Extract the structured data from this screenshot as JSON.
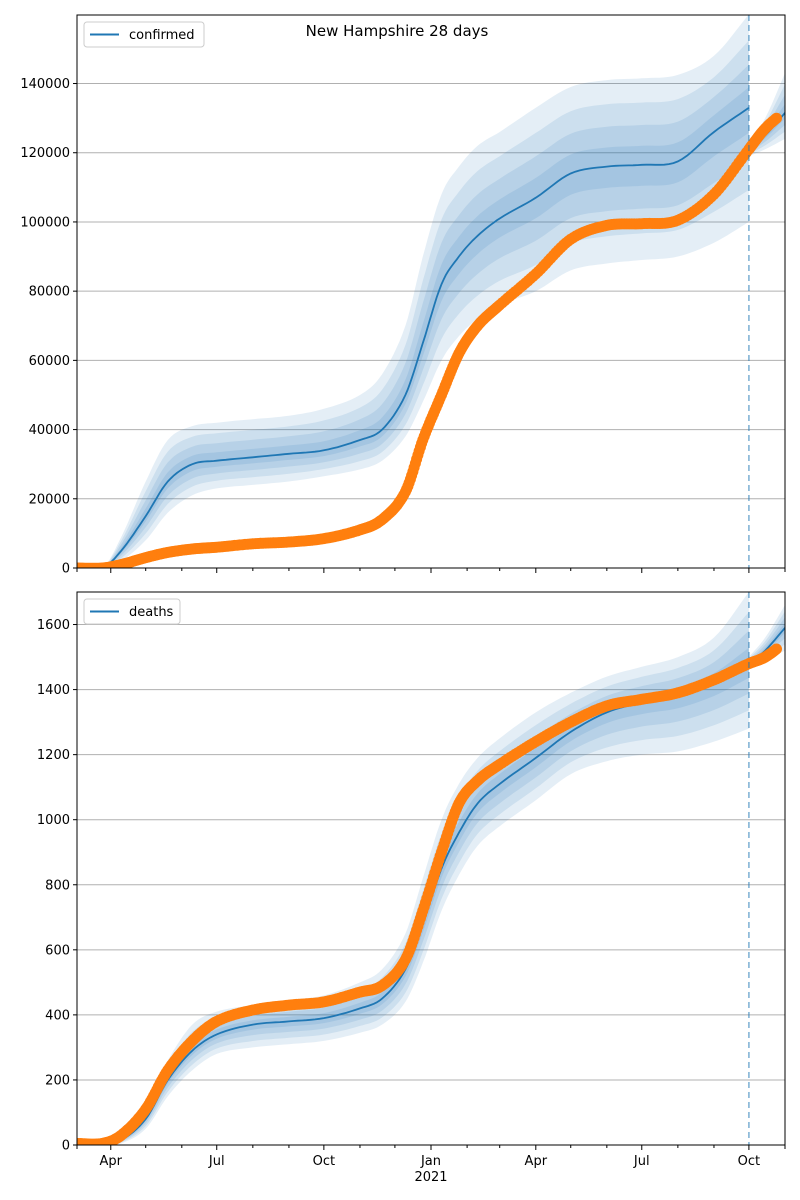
{
  "chart_data": [
    {
      "type": "line",
      "title": "New Hampshire 28 days",
      "legend": {
        "entries": [
          "confirmed"
        ],
        "placement": "top-left"
      },
      "xlabel": "",
      "ylabel": "",
      "ylim": [
        0,
        159800
      ],
      "yticks": [
        0,
        20000,
        40000,
        60000,
        80000,
        100000,
        120000,
        140000
      ],
      "ytick_labels": [
        "0",
        "20000",
        "40000",
        "60000",
        "80000",
        "100000",
        "120000",
        "140000"
      ],
      "grid": "y",
      "forecast_marker_date": "2021-10-01",
      "x_dates": [
        "2020-03-01",
        "2020-03-25",
        "2020-04-10",
        "2020-05-01",
        "2020-05-20",
        "2020-06-10",
        "2020-07-01",
        "2020-08-01",
        "2020-09-01",
        "2020-10-01",
        "2020-11-01",
        "2020-11-20",
        "2020-12-10",
        "2020-12-25",
        "2021-01-10",
        "2021-01-25",
        "2021-02-10",
        "2021-03-01",
        "2021-04-01",
        "2021-05-01",
        "2021-06-01",
        "2021-07-01",
        "2021-08-01",
        "2021-09-01",
        "2021-10-01"
      ],
      "series": [
        {
          "name": "confirmed (model median)",
          "color": "#1f77b4",
          "values": [
            0,
            0,
            5000,
            15000,
            25000,
            30000,
            31000,
            32000,
            33000,
            34000,
            37000,
            40000,
            50000,
            65000,
            82000,
            90000,
            96000,
            101000,
            107000,
            114000,
            116000,
            116500,
            117500,
            126000,
            133000
          ]
        },
        {
          "name": "confirmed (observed)",
          "color": "#ff7f0e",
          "values": [
            0,
            0,
            1000,
            3000,
            4500,
            5500,
            6000,
            7000,
            7500,
            8500,
            11000,
            14000,
            22000,
            37000,
            50000,
            62000,
            70000,
            76000,
            85000,
            95000,
            99000,
            99500,
            100500,
            108000,
            121000
          ]
        },
        {
          "name": "band-outer",
          "values_low": [
            0,
            0,
            2000,
            8000,
            16000,
            21000,
            23000,
            24000,
            25000,
            26500,
            28500,
            31000,
            38000,
            48000,
            60000,
            67000,
            72000,
            76000,
            80000,
            86000,
            88000,
            89000,
            90000,
            94000,
            100000
          ],
          "values_high": [
            0,
            0,
            9000,
            25000,
            37000,
            41000,
            42000,
            43000,
            44000,
            46000,
            50000,
            56000,
            70000,
            90000,
            108000,
            116000,
            122000,
            126000,
            133000,
            139000,
            141000,
            141500,
            142500,
            148000,
            160000
          ]
        }
      ],
      "tail_forecast": {
        "x_dates": [
          "2021-10-01",
          "2021-10-15",
          "2021-11-01"
        ],
        "median": [
          121000,
          125000,
          131500
        ],
        "observed": [
          121000,
          127000,
          132000
        ],
        "low": [
          119000,
          121000,
          124000
        ],
        "high": [
          123000,
          130000,
          143000
        ]
      }
    },
    {
      "type": "line",
      "title": "",
      "legend": {
        "entries": [
          "deaths"
        ],
        "placement": "top-left"
      },
      "xlabel": "2021",
      "ylabel": "",
      "ylim": [
        0,
        1700
      ],
      "yticks": [
        0,
        200,
        400,
        600,
        800,
        1000,
        1200,
        1400,
        1600
      ],
      "ytick_labels": [
        "0",
        "200",
        "400",
        "600",
        "800",
        "1000",
        "1200",
        "1400",
        "1600"
      ],
      "xtick_labels": [
        "Apr",
        "Jul",
        "Oct",
        "Jan",
        "Apr",
        "Jul",
        "Oct"
      ],
      "xtick_dates": [
        "2020-04-01",
        "2020-07-01",
        "2020-10-01",
        "2021-01-01",
        "2021-04-01",
        "2021-07-01",
        "2021-10-01"
      ],
      "grid": "y",
      "forecast_marker_date": "2021-10-01",
      "x_dates": [
        "2020-03-01",
        "2020-03-25",
        "2020-04-10",
        "2020-05-01",
        "2020-05-20",
        "2020-06-10",
        "2020-07-01",
        "2020-08-01",
        "2020-09-01",
        "2020-10-01",
        "2020-11-01",
        "2020-11-20",
        "2020-12-10",
        "2020-12-25",
        "2021-01-10",
        "2021-01-25",
        "2021-02-10",
        "2021-03-01",
        "2021-04-01",
        "2021-05-01",
        "2021-06-01",
        "2021-07-01",
        "2021-08-01",
        "2021-09-01",
        "2021-10-01"
      ],
      "series": [
        {
          "name": "deaths (model median)",
          "color": "#1f77b4",
          "values": [
            0,
            0,
            15,
            80,
            200,
            290,
            340,
            370,
            380,
            390,
            420,
            450,
            540,
            680,
            850,
            960,
            1050,
            1110,
            1190,
            1270,
            1330,
            1360,
            1380,
            1420,
            1480
          ]
        },
        {
          "name": "deaths (observed)",
          "color": "#ff7f0e",
          "values": [
            5,
            5,
            30,
            110,
            230,
            320,
            380,
            415,
            430,
            440,
            470,
            490,
            570,
            720,
            900,
            1050,
            1120,
            1170,
            1240,
            1300,
            1350,
            1370,
            1390,
            1430,
            1480
          ]
        },
        {
          "name": "band-outer",
          "values_low": [
            0,
            0,
            5,
            50,
            150,
            230,
            280,
            300,
            310,
            320,
            345,
            370,
            440,
            560,
            720,
            830,
            920,
            980,
            1060,
            1140,
            1180,
            1200,
            1210,
            1240,
            1280
          ],
          "values_high": [
            0,
            0,
            30,
            120,
            260,
            370,
            410,
            430,
            445,
            460,
            500,
            540,
            650,
            820,
            1000,
            1110,
            1190,
            1250,
            1330,
            1390,
            1440,
            1470,
            1500,
            1560,
            1700
          ]
        }
      ],
      "tail_forecast": {
        "x_dates": [
          "2021-10-01",
          "2021-10-15",
          "2021-11-01"
        ],
        "median": [
          1480,
          1520,
          1590
        ],
        "observed": [
          1480,
          1500,
          1545
        ],
        "low": [
          1470,
          1490,
          1520
        ],
        "high": [
          1500,
          1560,
          1660
        ]
      }
    }
  ]
}
